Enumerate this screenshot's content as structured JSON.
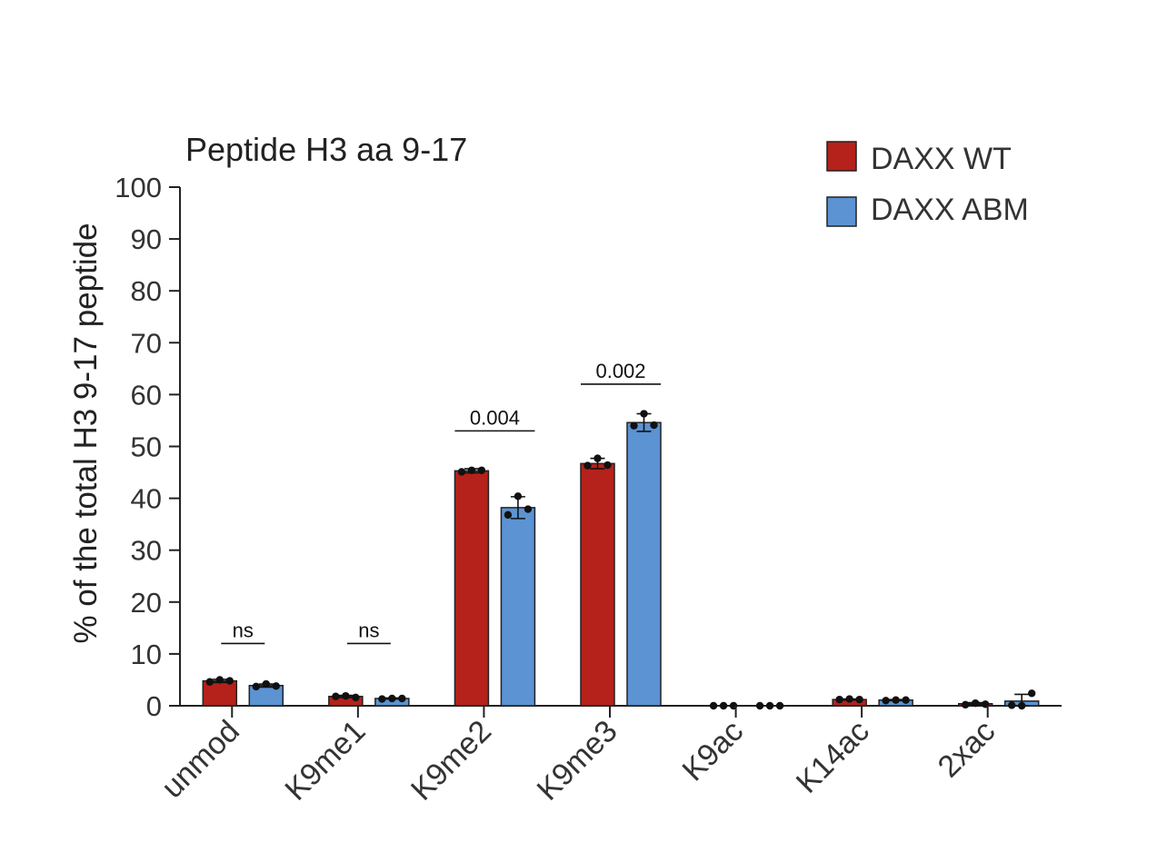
{
  "chart_data": {
    "type": "bar",
    "title": "Peptide H3 aa 9-17",
    "ylabel": "% of the total H3 9-17 peptide",
    "xlabel": "",
    "ylim": [
      0,
      100
    ],
    "yticks": [
      0,
      10,
      20,
      30,
      40,
      50,
      60,
      70,
      80,
      90,
      100
    ],
    "categories": [
      "unmod",
      "K9me1",
      "K9me2",
      "K9me3",
      "K9ac",
      "K14ac",
      "2xac"
    ],
    "legend_position": "top-right",
    "grid": false,
    "series": [
      {
        "name": "DAXX WT",
        "color": "#b5211b",
        "label_color": "#b5211b",
        "values": [
          4.8,
          1.8,
          45.3,
          46.7,
          0.0,
          1.2,
          0.4
        ],
        "error": [
          0.3,
          0.2,
          0.4,
          1.0,
          0.0,
          0.1,
          0.2
        ],
        "points": [
          [
            4.6,
            5.0,
            4.8
          ],
          [
            1.8,
            1.9,
            1.6
          ],
          [
            45.1,
            45.4,
            45.4
          ],
          [
            46.3,
            47.7,
            46.4
          ],
          [
            0.0,
            0.0,
            0.0
          ],
          [
            1.2,
            1.3,
            1.2
          ],
          [
            0.2,
            0.5,
            0.3
          ]
        ]
      },
      {
        "name": "DAXX ABM",
        "color": "#5b93d3",
        "label_color": "#5b93d3",
        "values": [
          3.9,
          1.4,
          38.2,
          54.6,
          0.0,
          1.1,
          0.9
        ],
        "error": [
          0.3,
          0.1,
          2.1,
          1.7,
          0.0,
          0.1,
          1.3
        ],
        "points": [
          [
            3.7,
            4.2,
            3.8
          ],
          [
            1.3,
            1.4,
            1.4
          ],
          [
            36.8,
            40.4,
            37.9
          ],
          [
            54.0,
            56.3,
            54.1
          ],
          [
            0.0,
            0.0,
            0.0
          ],
          [
            1.0,
            1.1,
            1.1
          ],
          [
            0.1,
            0.0,
            2.4
          ]
        ]
      }
    ],
    "annotations": [
      {
        "category": "unmod",
        "text": "ns",
        "y": 12
      },
      {
        "category": "K9me1",
        "text": "ns",
        "y": 12
      },
      {
        "category": "K9me2",
        "text": "0.004",
        "y": 53
      },
      {
        "category": "K9me3",
        "text": "0.002",
        "y": 62
      }
    ]
  }
}
